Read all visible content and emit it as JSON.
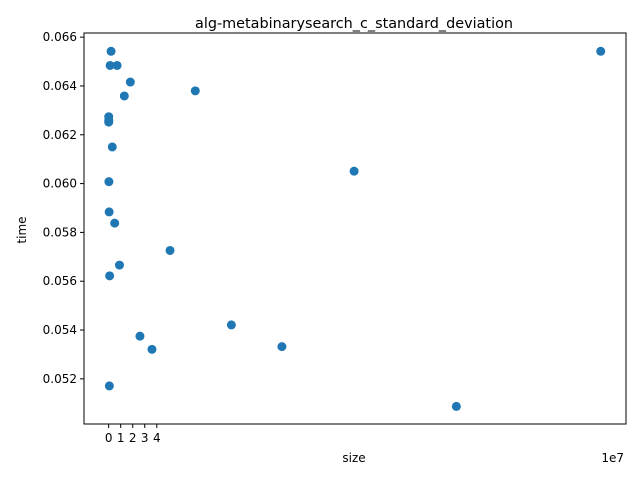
{
  "chart_data": {
    "type": "scatter",
    "title": "alg-metabinarysearch_c_standard_deviation",
    "xlabel": "size",
    "ylabel": "time",
    "x_offset_label": "1e7",
    "xlim": [
      -2.05,
      43.0
    ],
    "ylim": [
      0.05015,
      0.06617
    ],
    "x_ticks": [
      0,
      1,
      2,
      3,
      4
    ],
    "x_tick_labels": [
      "0",
      "1",
      "2",
      "3",
      "4"
    ],
    "y_ticks": [
      0.052,
      0.054,
      0.056,
      0.058,
      0.06,
      0.062,
      0.064,
      0.066
    ],
    "y_tick_labels": [
      "0.052",
      "0.054",
      "0.056",
      "0.058",
      "0.060",
      "0.062",
      "0.064",
      "0.066"
    ],
    "grid": false,
    "marker_color": "#1f77b4",
    "series": [
      {
        "x": [
          0.003,
          0.005,
          0.01,
          0.02,
          0.04,
          0.06,
          0.08,
          0.12,
          0.2,
          0.3,
          0.5,
          0.7,
          0.9,
          1.3,
          1.8,
          2.6,
          3.6,
          5.1,
          7.2,
          10.2,
          14.4,
          20.4,
          28.9,
          40.9
        ],
        "y": [
          0.06252,
          0.06274,
          0.0626,
          0.06008,
          0.05884,
          0.05171,
          0.05622,
          0.06484,
          0.06542,
          0.0615,
          0.05838,
          0.06484,
          0.05666,
          0.06359,
          0.06416,
          0.05375,
          0.05321,
          0.05726,
          0.0638,
          0.05421,
          0.05332,
          0.06051,
          0.05087,
          0.06542
        ]
      }
    ]
  }
}
